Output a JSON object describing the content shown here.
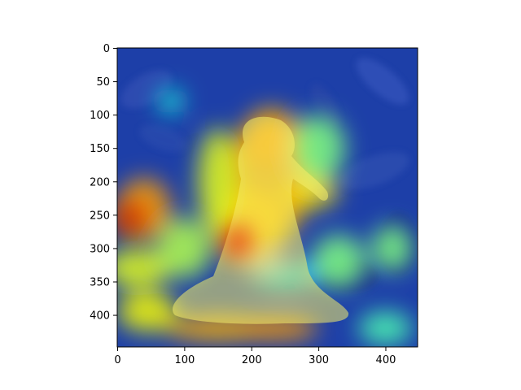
{
  "chart_data": {
    "type": "heatmap",
    "title": "",
    "xlabel": "",
    "ylabel": "",
    "xlim": [
      0,
      448
    ],
    "ylim": [
      448,
      0
    ],
    "x_ticks": [
      "0",
      "100",
      "200",
      "300",
      "400"
    ],
    "y_ticks": [
      "0",
      "50",
      "100",
      "150",
      "200",
      "250",
      "300",
      "350",
      "400"
    ],
    "colormap": "jet",
    "background_image": "albatross-photo",
    "heat_regions": [
      {
        "x": 230,
        "y": 190,
        "rx": 60,
        "ry": 100,
        "value": 0.7
      },
      {
        "x": 225,
        "y": 140,
        "rx": 45,
        "ry": 35,
        "value": 0.72
      },
      {
        "x": 290,
        "y": 215,
        "rx": 40,
        "ry": 25,
        "value": 0.65
      },
      {
        "x": 200,
        "y": 270,
        "rx": 55,
        "ry": 60,
        "value": 0.68
      },
      {
        "x": 180,
        "y": 290,
        "rx": 22,
        "ry": 28,
        "value": 0.9
      },
      {
        "x": 150,
        "y": 200,
        "rx": 30,
        "ry": 80,
        "value": 0.6
      },
      {
        "x": 20,
        "y": 255,
        "rx": 28,
        "ry": 28,
        "value": 0.95
      },
      {
        "x": 40,
        "y": 240,
        "rx": 40,
        "ry": 45,
        "value": 0.72
      },
      {
        "x": 30,
        "y": 330,
        "rx": 50,
        "ry": 30,
        "value": 0.6
      },
      {
        "x": 45,
        "y": 395,
        "rx": 45,
        "ry": 30,
        "value": 0.62
      },
      {
        "x": 150,
        "y": 420,
        "rx": 80,
        "ry": 20,
        "value": 0.7
      },
      {
        "x": 240,
        "y": 420,
        "rx": 60,
        "ry": 18,
        "value": 0.72
      },
      {
        "x": 250,
        "y": 340,
        "rx": 50,
        "ry": 20,
        "value": 0.35
      },
      {
        "x": 330,
        "y": 320,
        "rx": 40,
        "ry": 40,
        "value": 0.5
      },
      {
        "x": 410,
        "y": 300,
        "rx": 30,
        "ry": 35,
        "value": 0.5
      },
      {
        "x": 80,
        "y": 80,
        "rx": 18,
        "ry": 18,
        "value": 0.4
      },
      {
        "x": 300,
        "y": 150,
        "rx": 40,
        "ry": 50,
        "value": 0.5
      },
      {
        "x": 400,
        "y": 420,
        "rx": 40,
        "ry": 25,
        "value": 0.45
      },
      {
        "x": 100,
        "y": 300,
        "rx": 40,
        "ry": 45,
        "value": 0.55
      }
    ]
  }
}
